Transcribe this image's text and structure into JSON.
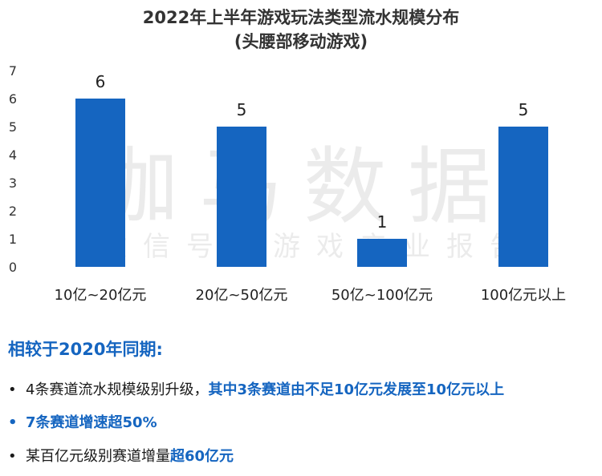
{
  "title_line_1": "2022年上半年游戏玩法类型流水规模分布",
  "title_line_2": "(头腰部移动游戏)",
  "watermark": {
    "main": "伽马数据",
    "sub": "微信号：游戏产业报告"
  },
  "colors": {
    "bar": "#1565c0",
    "accent": "#1565c0"
  },
  "chart_data": {
    "type": "bar",
    "title": "2022年上半年游戏玩法类型流水规模分布",
    "subtitle": "(头腰部移动游戏)",
    "categories": [
      "10亿~20亿元",
      "20亿~50亿元",
      "50亿~100亿元",
      "100亿元以上"
    ],
    "values": [
      6,
      5,
      1,
      5
    ],
    "ylim": [
      0,
      7
    ],
    "yticks": [
      0,
      1,
      2,
      3,
      4,
      5,
      6,
      7
    ],
    "grid": false,
    "data_labels": true
  },
  "summary": {
    "heading": "相较于2020年同期:",
    "bullet_symbol": "•",
    "bullets": [
      {
        "text": "4条赛道流水规模级别升级，",
        "highlight": "其中3条赛道由不足10亿元发展至10亿元以上"
      },
      {
        "text": "7条赛道增速超50%"
      },
      {
        "text": "某百亿元级别赛道增量",
        "highlight": "超60亿元"
      }
    ]
  }
}
